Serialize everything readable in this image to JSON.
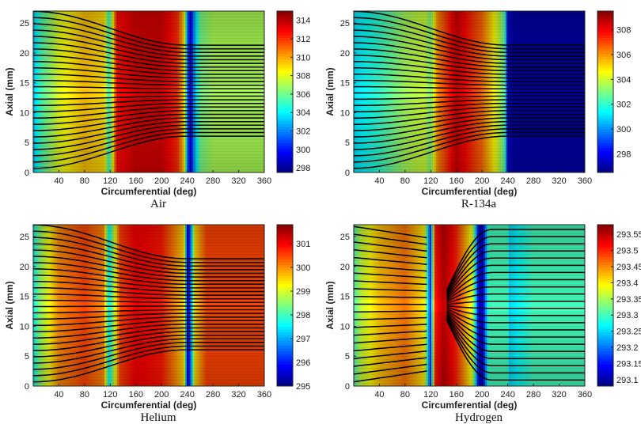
{
  "figure": {
    "panels": [
      {
        "caption": "Air",
        "xlabel": "Circumferential (deg)",
        "ylabel": "Axial (mm)"
      },
      {
        "caption": "R-134a",
        "xlabel": "Circumferential (deg)",
        "ylabel": "Axial (mm)"
      },
      {
        "caption": "Helium",
        "xlabel": "Circumferential (deg)",
        "ylabel": "Axial (mm)"
      },
      {
        "caption": "Hydrogen",
        "xlabel": "Circumferential (deg)",
        "ylabel": "Axial (mm)"
      }
    ]
  },
  "chart_data": [
    {
      "type": "heatmap",
      "title": "Air",
      "xlabel": "Circumferential (deg)",
      "ylabel": "Axial (mm)",
      "xlim": [
        0,
        360
      ],
      "ylim": [
        0,
        27
      ],
      "x_ticks": [
        "40",
        "80",
        "120",
        "160",
        "200",
        "240",
        "280",
        "320",
        "360"
      ],
      "y_ticks": [
        "0",
        "5",
        "10",
        "15",
        "20",
        "25"
      ],
      "colorbar": {
        "min": 297.5,
        "max": 315,
        "ticks": [
          "298",
          "300",
          "302",
          "304",
          "306",
          "308",
          "310",
          "312",
          "314"
        ]
      },
      "colormap": "jet",
      "profile_x": [
        0,
        10,
        40,
        80,
        110,
        118,
        122,
        130,
        160,
        200,
        225,
        235,
        240,
        245,
        250,
        260,
        280,
        320,
        360
      ],
      "profile_value": [
        303,
        305,
        308,
        309.5,
        309,
        305,
        307,
        312.5,
        313.5,
        313.5,
        312,
        309,
        302,
        299,
        302,
        306,
        307,
        307,
        307
      ],
      "streamlines": "converge toward the centerline (~13.5 mm) with increasing circumferential angle, becoming horizontal beyond ~240 deg"
    },
    {
      "type": "heatmap",
      "title": "R-134a",
      "xlabel": "Circumferential (deg)",
      "ylabel": "Axial (mm)",
      "xlim": [
        0,
        360
      ],
      "ylim": [
        0,
        27
      ],
      "x_ticks": [
        "40",
        "80",
        "120",
        "160",
        "200",
        "240",
        "280",
        "320",
        "360"
      ],
      "y_ticks": [
        "0",
        "5",
        "10",
        "15",
        "20",
        "25"
      ],
      "colorbar": {
        "min": 296.5,
        "max": 309.5,
        "ticks": [
          "298",
          "300",
          "302",
          "304",
          "306",
          "308"
        ]
      },
      "colormap": "jet",
      "profile_x": [
        0,
        40,
        80,
        110,
        120,
        130,
        160,
        200,
        225,
        235,
        240,
        250,
        280,
        320,
        360
      ],
      "profile_value": [
        301,
        302,
        303.5,
        304,
        303,
        306,
        308.5,
        306.5,
        304,
        302.5,
        297.5,
        297,
        297,
        297,
        297
      ],
      "streamlines": "converge toward the centerline (~13.5 mm) with increasing circumferential angle, becoming horizontal beyond ~240 deg"
    },
    {
      "type": "heatmap",
      "title": "Helium",
      "xlabel": "Circumferential (deg)",
      "ylabel": "Axial (mm)",
      "xlim": [
        0,
        360
      ],
      "ylim": [
        0,
        27
      ],
      "x_ticks": [
        "40",
        "80",
        "120",
        "160",
        "200",
        "240",
        "280",
        "320",
        "360"
      ],
      "y_ticks": [
        "0",
        "5",
        "10",
        "15",
        "20",
        "25"
      ],
      "colorbar": {
        "min": 295,
        "max": 301.8,
        "ticks": [
          "295",
          "296",
          "297",
          "298",
          "299",
          "300",
          "301"
        ]
      },
      "colormap": "jet",
      "profile_x": [
        0,
        10,
        40,
        80,
        110,
        118,
        124,
        135,
        160,
        200,
        235,
        240,
        245,
        252,
        270,
        320,
        360
      ],
      "profile_value": [
        297.5,
        298.5,
        300,
        300.5,
        300,
        297.5,
        298.5,
        300.5,
        301,
        300.8,
        299.5,
        295.5,
        296.5,
        299.5,
        300.5,
        300.5,
        300.5
      ],
      "streamlines": "converge toward the centerline (~13.5 mm) with increasing circumferential angle, becoming horizontal beyond ~240 deg"
    },
    {
      "type": "heatmap",
      "title": "Hydrogen",
      "xlabel": "Circumferential (deg)",
      "ylabel": "Axial (mm)",
      "xlim": [
        0,
        360
      ],
      "ylim": [
        0,
        27
      ],
      "x_ticks": [
        "40",
        "80",
        "120",
        "160",
        "200",
        "240",
        "280",
        "320",
        "360"
      ],
      "y_ticks": [
        "0",
        "5",
        "10",
        "15",
        "20",
        "25"
      ],
      "colorbar": {
        "min": 293.08,
        "max": 293.58,
        "ticks": [
          "293.1",
          "293.15",
          "293.2",
          "293.25",
          "293.3",
          "293.35",
          "293.4",
          "293.45",
          "293.5",
          "293.55"
        ]
      },
      "colormap": "jet",
      "profile_x": [
        0,
        10,
        40,
        80,
        110,
        120,
        126,
        140,
        160,
        185,
        195,
        200,
        210,
        240,
        242,
        280,
        360
      ],
      "profile_value": [
        293.3,
        293.36,
        293.42,
        293.46,
        293.4,
        293.15,
        293.5,
        293.55,
        293.5,
        293.38,
        293.12,
        293.1,
        293.3,
        293.3,
        293.25,
        293.3,
        293.3
      ],
      "streamlines": "fan outward from a focus near 145 deg, 13.5 mm and turn horizontal beyond ~215 deg"
    }
  ]
}
